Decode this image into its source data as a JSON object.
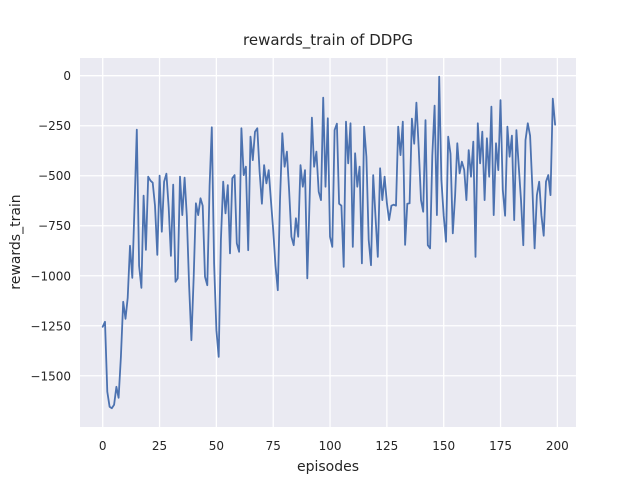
{
  "chart_data": {
    "type": "line",
    "title": "rewards_train of DDPG",
    "xlabel": "episodes",
    "ylabel": "rewards_train",
    "legend_position": "none",
    "grid": true,
    "style": "seaborn-darkgrid",
    "background": "#eaeaf2",
    "figure_background": "#ffffff",
    "grid_color": "#ffffff",
    "text_color": "#262626",
    "xticks": [
      0,
      25,
      50,
      75,
      100,
      125,
      150,
      175,
      200
    ],
    "yticks": [
      0,
      -250,
      -500,
      -750,
      -1000,
      -1250,
      -1500
    ],
    "xlim": [
      -10,
      208.2
    ],
    "ylim": [
      -1756,
      88.5
    ],
    "x": {
      "start": 0,
      "step": 1,
      "count": 200
    },
    "series": [
      {
        "name": "rewards_train",
        "color": "#4c72b0",
        "values": [
          -1255,
          -1230,
          -1580,
          -1655,
          -1662,
          -1645,
          -1555,
          -1610,
          -1405,
          -1130,
          -1215,
          -1110,
          -850,
          -1010,
          -640,
          -270,
          -950,
          -1060,
          -600,
          -870,
          -505,
          -525,
          -535,
          -650,
          -895,
          -500,
          -780,
          -530,
          -490,
          -660,
          -900,
          -545,
          -1030,
          -1013,
          -505,
          -697,
          -510,
          -700,
          -1047,
          -1322,
          -1005,
          -638,
          -697,
          -613,
          -650,
          -1005,
          -1047,
          -550,
          -258,
          -938,
          -1272,
          -1405,
          -822,
          -530,
          -688,
          -547,
          -888,
          -513,
          -497,
          -838,
          -880,
          -263,
          -497,
          -455,
          -872,
          -305,
          -422,
          -280,
          -263,
          -480,
          -640,
          -447,
          -538,
          -472,
          -622,
          -772,
          -950,
          -1072,
          -622,
          -288,
          -455,
          -380,
          -572,
          -805,
          -847,
          -713,
          -805,
          -447,
          -555,
          -472,
          -1013,
          -622,
          -210,
          -455,
          -380,
          -580,
          -622,
          -110,
          -555,
          -213,
          -805,
          -855,
          -272,
          -240,
          -640,
          -650,
          -955,
          -230,
          -438,
          -238,
          -855,
          -388,
          -555,
          -455,
          -938,
          -255,
          -405,
          -822,
          -947,
          -497,
          -705,
          -905,
          -463,
          -622,
          -505,
          -638,
          -722,
          -650,
          -645,
          -650,
          -255,
          -397,
          -230,
          -845,
          -640,
          -638,
          -215,
          -340,
          -135,
          -360,
          -622,
          -680,
          -222,
          -847,
          -863,
          -400,
          -150,
          -697,
          -5,
          -522,
          -700,
          -830,
          -305,
          -390,
          -788,
          -600,
          -338,
          -488,
          -430,
          -470,
          -622,
          -372,
          -505,
          -330,
          -905,
          -238,
          -438,
          -280,
          -622,
          -313,
          -505,
          -155,
          -697,
          -338,
          -472,
          -122,
          -572,
          -700,
          -255,
          -405,
          -300,
          -722,
          -272,
          -450,
          -622,
          -847,
          -322,
          -238,
          -300,
          -563,
          -863,
          -597,
          -530,
          -697,
          -800,
          -530,
          -497,
          -597,
          -115,
          -245
        ]
      }
    ]
  }
}
